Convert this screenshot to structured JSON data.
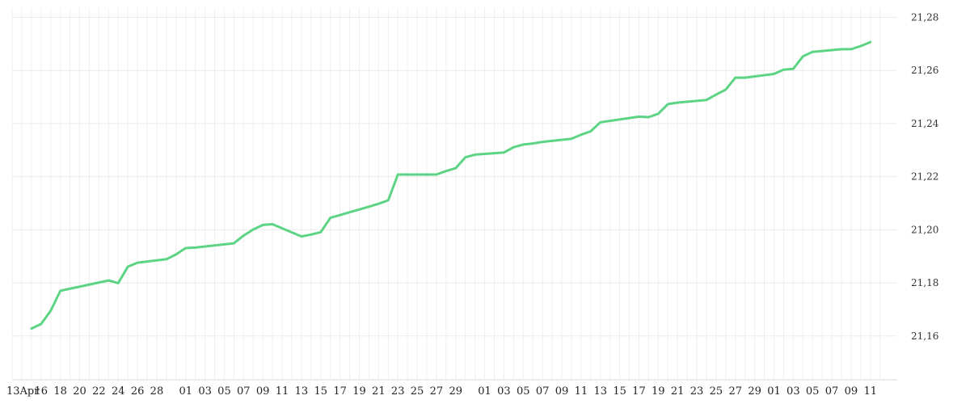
{
  "chart_data": {
    "type": "line",
    "title": "",
    "xlabel": "",
    "ylabel": "",
    "x_tick_labels": [
      "13Apr",
      "16",
      "18",
      "20",
      "22",
      "24",
      "26",
      "28",
      "01",
      "03",
      "05",
      "07",
      "09",
      "11",
      "13",
      "15",
      "17",
      "19",
      "21",
      "23",
      "25",
      "27",
      "29",
      "01",
      "03",
      "05",
      "07",
      "09",
      "11",
      "13",
      "15",
      "17",
      "19",
      "21",
      "23",
      "25",
      "27",
      "29",
      "01",
      "03",
      "05",
      "07",
      "09",
      "11"
    ],
    "y_tick_labels": [
      "21,16",
      "21,18",
      "21,20",
      "21,22",
      "21,24",
      "21,26",
      "21,28"
    ],
    "y_ticks": [
      21.16,
      21.18,
      21.2,
      21.22,
      21.24,
      21.26,
      21.28
    ],
    "ylim": [
      21.1435,
      21.2835
    ],
    "xlim": [
      "2024-04-13",
      "2024-07-12"
    ],
    "grid": true,
    "y_axis_position": "right",
    "colors": {
      "line": "#5dd484"
    },
    "series": [
      {
        "x": [
          "2024-04-15",
          "2024-04-16",
          "2024-04-17",
          "2024-04-18",
          "2024-04-23",
          "2024-04-24",
          "2024-04-25",
          "2024-04-26",
          "2024-04-29",
          "2024-04-30",
          "2024-05-01",
          "2024-05-02",
          "2024-05-06",
          "2024-05-07",
          "2024-05-08",
          "2024-05-09",
          "2024-05-10",
          "2024-05-13",
          "2024-05-14",
          "2024-05-15",
          "2024-05-16",
          "2024-05-20",
          "2024-05-21",
          "2024-05-22",
          "2024-05-23",
          "2024-05-27",
          "2024-05-28",
          "2024-05-29",
          "2024-05-30",
          "2024-05-31",
          "2024-06-03",
          "2024-06-04",
          "2024-06-05",
          "2024-06-06",
          "2024-06-07",
          "2024-06-10",
          "2024-06-11",
          "2024-06-12",
          "2024-06-13",
          "2024-06-17",
          "2024-06-18",
          "2024-06-19",
          "2024-06-20",
          "2024-06-21",
          "2024-06-24",
          "2024-06-25",
          "2024-06-26",
          "2024-06-27",
          "2024-06-28",
          "2024-07-01",
          "2024-07-02",
          "2024-07-03",
          "2024-07-04",
          "2024-07-05",
          "2024-07-08",
          "2024-07-09",
          "2024-07-10",
          "2024-07-11"
        ],
        "values": [
          21.1628,
          21.1645,
          21.1695,
          21.177,
          21.1809,
          21.1799,
          21.1861,
          21.1876,
          21.1889,
          21.1907,
          21.1931,
          21.1933,
          21.1949,
          21.1978,
          21.2001,
          21.2018,
          21.2021,
          21.1975,
          21.1982,
          21.1991,
          21.2045,
          21.2087,
          21.2098,
          21.2111,
          21.2208,
          21.2208,
          21.2221,
          21.2232,
          21.2273,
          21.2283,
          21.2291,
          21.2311,
          21.2321,
          21.2325,
          21.2331,
          21.2343,
          21.2358,
          21.2371,
          21.2405,
          21.2426,
          21.2424,
          21.2437,
          21.2473,
          21.2479,
          21.2489,
          21.2509,
          21.2528,
          21.2573,
          21.2573,
          21.2587,
          21.2603,
          21.2606,
          21.2653,
          21.267,
          21.268,
          21.268,
          21.2692,
          21.2707
        ]
      }
    ]
  }
}
